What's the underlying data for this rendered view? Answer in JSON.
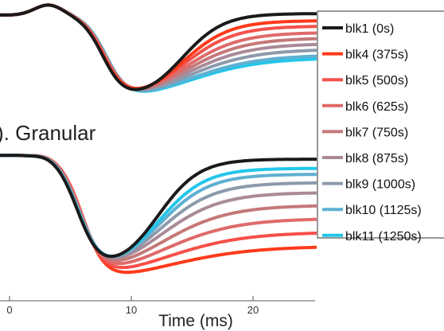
{
  "chart_data": {
    "type": "line",
    "panel_label": "). Granular",
    "xlabel": "Time (ms)",
    "xticks": [
      0,
      10,
      20
    ],
    "xlim": [
      0,
      25.5
    ],
    "legend_position": "right",
    "grid": false,
    "series": [
      {
        "name": "blk1 (0s)",
        "color": "#1a1a1a"
      },
      {
        "name": "blk4 (375s)",
        "color": "#ff3a1a"
      },
      {
        "name": "blk5 (500s)",
        "color": "#f5504a"
      },
      {
        "name": "blk6 (625s)",
        "color": "#e06a6a"
      },
      {
        "name": "blk7 (750s)",
        "color": "#c57878"
      },
      {
        "name": "blk8 (875s)",
        "color": "#a98a98"
      },
      {
        "name": "blk9 (1000s)",
        "color": "#8c9aac"
      },
      {
        "name": "blk10 (1125s)",
        "color": "#5fb0d2"
      },
      {
        "name": "blk11 (1250s)",
        "color": "#22c6ea"
      }
    ],
    "panels": [
      {
        "id": "top",
        "recovery": [
          1.0,
          0.92,
          0.86,
          0.79,
          0.73,
          0.67,
          0.61,
          0.55,
          0.52
        ]
      },
      {
        "id": "bottom",
        "recovery": [
          1.0,
          0.32,
          0.42,
          0.52,
          0.62,
          0.72,
          0.8,
          0.87,
          0.92
        ]
      }
    ]
  }
}
